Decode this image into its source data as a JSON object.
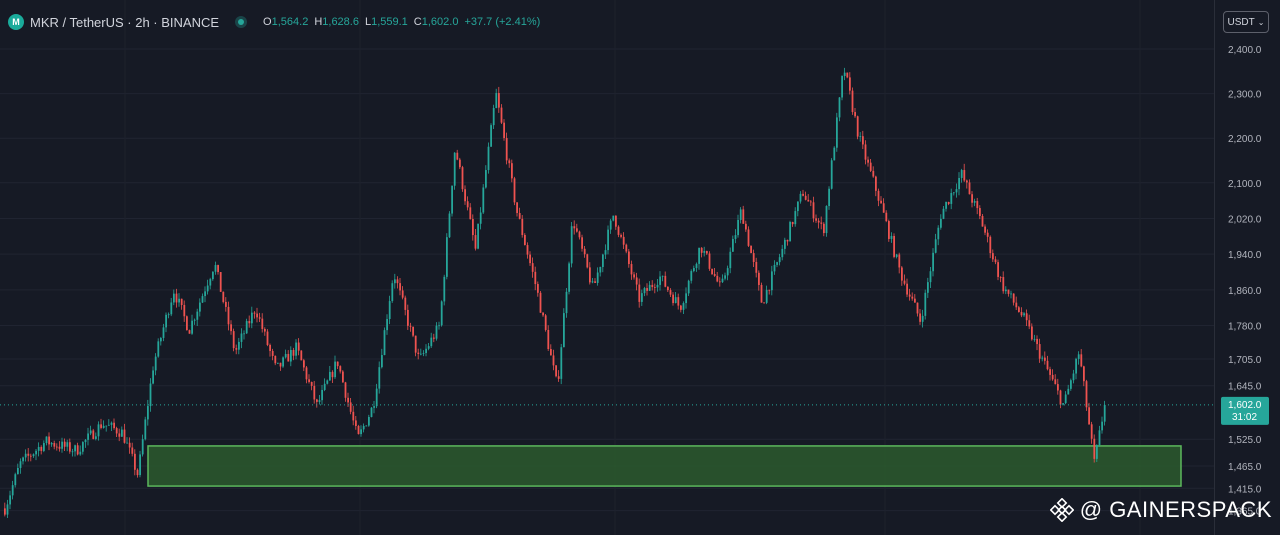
{
  "header": {
    "symbol": "MKR / TetherUS · 2h · BINANCE",
    "coin_icon": "mkr-coin-icon",
    "ohlc": [
      {
        "k": "O",
        "v": "1,564.2"
      },
      {
        "k": "H",
        "v": "1,628.6"
      },
      {
        "k": "L",
        "v": "1,559.1"
      },
      {
        "k": "C",
        "v": "1,602.0"
      }
    ],
    "change": "+37.7 (+2.41%)"
  },
  "currency": {
    "label": "USDT"
  },
  "price_label": {
    "price": "1,602.0",
    "countdown": "31:02"
  },
  "watermark": "@ GAINERSPACK",
  "colors": {
    "background": "#161a25",
    "up": "#26a69a",
    "down": "#ef5350",
    "zone_fill": "#2c5a2e",
    "zone_border": "#5cb85c"
  },
  "chart_data": {
    "type": "candlestick",
    "y_ticks": [
      "2,400.0",
      "2,300.0",
      "2,200.0",
      "2,100.0",
      "2,020.0",
      "1,940.0",
      "1,860.0",
      "1,780.0",
      "1,705.0",
      "1,645.0",
      "1,525.0",
      "1,465.0",
      "1,415.0",
      "1,365.0"
    ],
    "ylim": [
      1355,
      2430
    ],
    "last_price": 1602.0,
    "zone": {
      "top": 1510,
      "bottom": 1420
    },
    "price_path": [
      {
        "t": 0,
        "p": 1370
      },
      {
        "t": 3,
        "p": 1470
      },
      {
        "t": 8,
        "p": 1520
      },
      {
        "t": 14,
        "p": 1500
      },
      {
        "t": 19,
        "p": 1560
      },
      {
        "t": 23,
        "p": 1540
      },
      {
        "t": 26,
        "p": 1445
      },
      {
        "t": 29,
        "p": 1690
      },
      {
        "t": 33,
        "p": 1860
      },
      {
        "t": 36,
        "p": 1770
      },
      {
        "t": 41,
        "p": 1920
      },
      {
        "t": 45,
        "p": 1720
      },
      {
        "t": 49,
        "p": 1820
      },
      {
        "t": 53,
        "p": 1680
      },
      {
        "t": 57,
        "p": 1730
      },
      {
        "t": 61,
        "p": 1600
      },
      {
        "t": 65,
        "p": 1700
      },
      {
        "t": 69,
        "p": 1525
      },
      {
        "t": 72,
        "p": 1600
      },
      {
        "t": 76,
        "p": 1900
      },
      {
        "t": 81,
        "p": 1700
      },
      {
        "t": 85,
        "p": 1780
      },
      {
        "t": 88,
        "p": 2180
      },
      {
        "t": 92,
        "p": 1950
      },
      {
        "t": 96,
        "p": 2300
      },
      {
        "t": 100,
        "p": 2040
      },
      {
        "t": 104,
        "p": 1860
      },
      {
        "t": 108,
        "p": 1640
      },
      {
        "t": 111,
        "p": 2020
      },
      {
        "t": 115,
        "p": 1860
      },
      {
        "t": 119,
        "p": 2030
      },
      {
        "t": 124,
        "p": 1840
      },
      {
        "t": 128,
        "p": 1890
      },
      {
        "t": 132,
        "p": 1820
      },
      {
        "t": 136,
        "p": 1960
      },
      {
        "t": 140,
        "p": 1860
      },
      {
        "t": 144,
        "p": 2040
      },
      {
        "t": 148,
        "p": 1830
      },
      {
        "t": 152,
        "p": 1950
      },
      {
        "t": 156,
        "p": 2080
      },
      {
        "t": 160,
        "p": 1990
      },
      {
        "t": 164,
        "p": 2360
      },
      {
        "t": 167,
        "p": 2200
      },
      {
        "t": 171,
        "p": 2060
      },
      {
        "t": 175,
        "p": 1900
      },
      {
        "t": 179,
        "p": 1790
      },
      {
        "t": 183,
        "p": 2030
      },
      {
        "t": 187,
        "p": 2120
      },
      {
        "t": 191,
        "p": 2010
      },
      {
        "t": 195,
        "p": 1870
      },
      {
        "t": 199,
        "p": 1800
      },
      {
        "t": 203,
        "p": 1700
      },
      {
        "t": 207,
        "p": 1600
      },
      {
        "t": 210,
        "p": 1720
      },
      {
        "t": 213,
        "p": 1470
      },
      {
        "t": 215,
        "p": 1602
      }
    ]
  }
}
